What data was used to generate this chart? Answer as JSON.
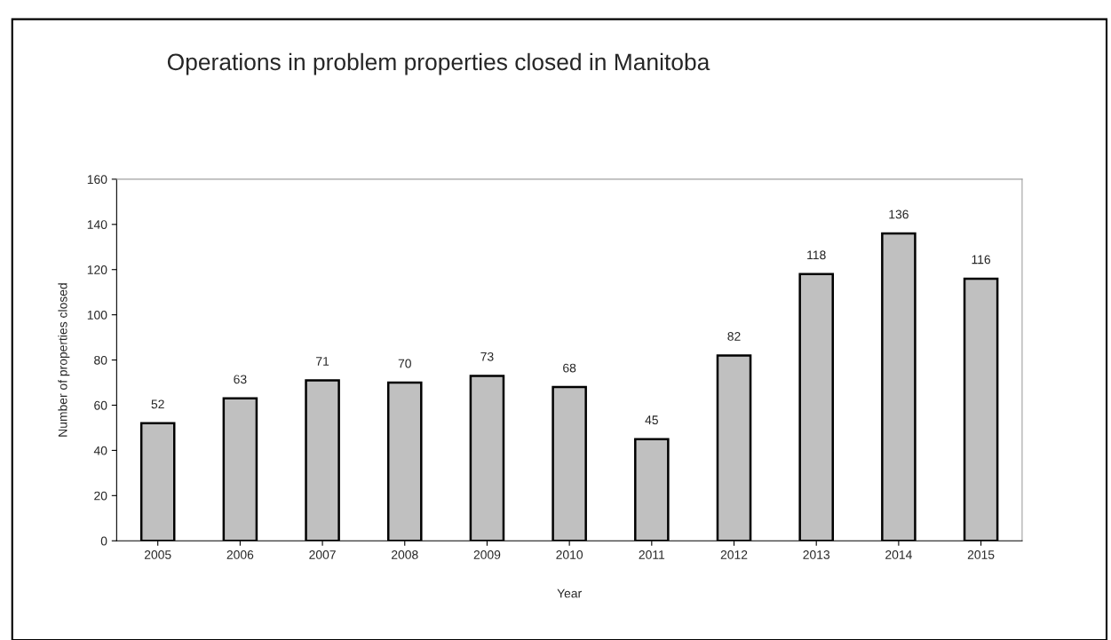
{
  "chart_data": {
    "type": "bar",
    "title": "Operations in problem properties closed in Manitoba",
    "xlabel": "Year",
    "ylabel": "Number of properties closed",
    "categories": [
      "2005",
      "2006",
      "2007",
      "2008",
      "2009",
      "2010",
      "2011",
      "2012",
      "2013",
      "2014",
      "2015"
    ],
    "values": [
      52,
      63,
      71,
      70,
      73,
      68,
      45,
      82,
      118,
      136,
      116
    ],
    "color": "#c0c0c0",
    "ylim": [
      0,
      160
    ],
    "yticks": [
      0,
      20,
      40,
      60,
      80,
      100,
      120,
      140,
      160
    ],
    "data_labels": true,
    "grid": false,
    "legend": false
  }
}
